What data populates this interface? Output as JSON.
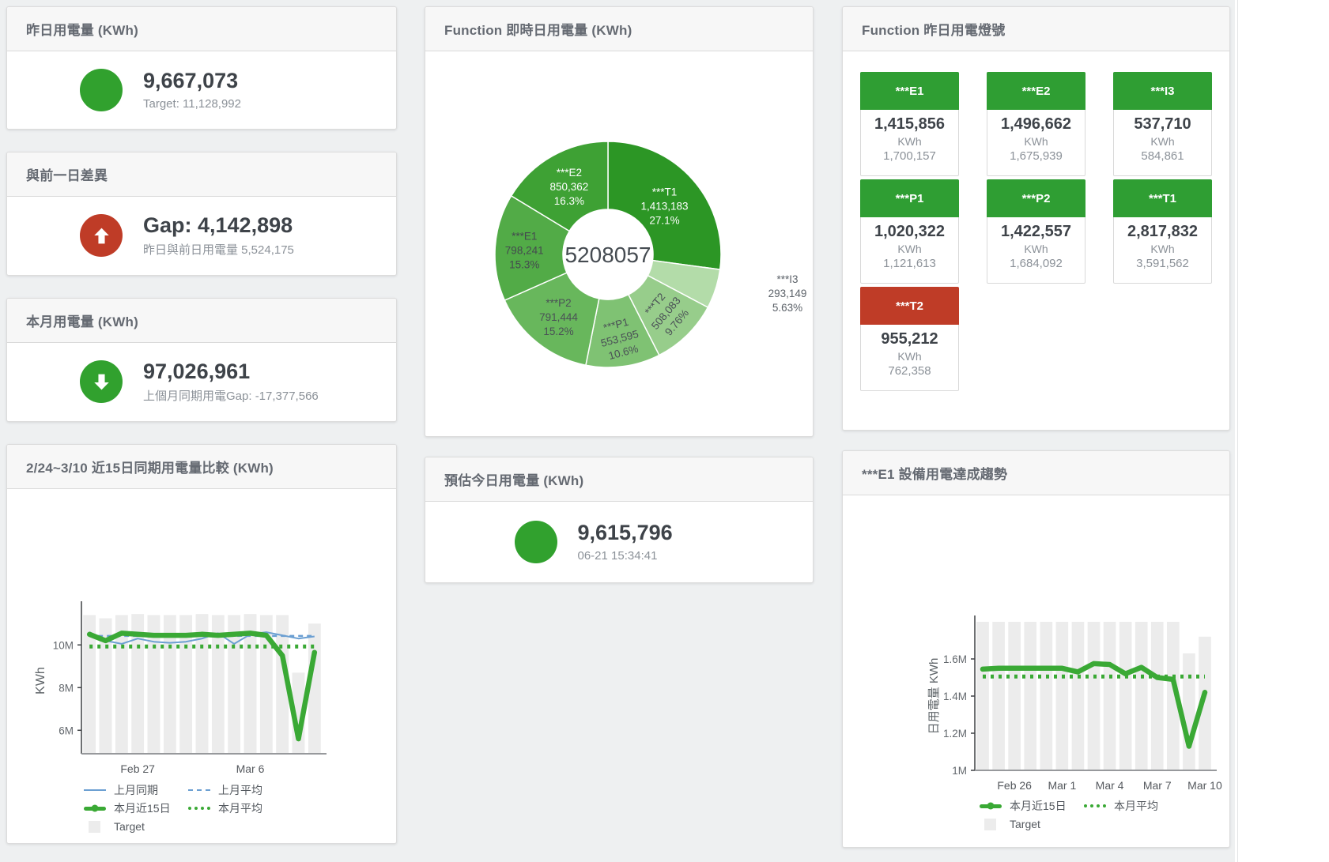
{
  "colors": {
    "status_green": "#31a12e",
    "status_red": "#bf3c27",
    "tile_green": "#2f9e33",
    "tile_red": "#bf3c27",
    "line_blue": "#6b9fd2",
    "line_green": "#3aa935",
    "target_gray": "#ececec"
  },
  "panels": {
    "yesterday": {
      "title": "昨日用電量 (KWh)",
      "value": "9,667,073",
      "subtitle": "Target: 11,128,992"
    },
    "diff": {
      "title": "與前一日差異",
      "value": "Gap: 4,142,898",
      "subtitle": "昨日與前日用電量 5,524,175"
    },
    "month": {
      "title": "本月用電量 (KWh)",
      "value": "97,026,961",
      "subtitle": "上個月同期用電Gap: -17,377,566"
    },
    "realtime": {
      "title": "Function 即時日用電量 (KWh)"
    },
    "lights": {
      "title": "Function 昨日用電燈號",
      "unit_label": "KWh",
      "tiles": [
        {
          "name": "***E1",
          "value": "1,415,856",
          "target": "1,700,157",
          "status": "green"
        },
        {
          "name": "***E2",
          "value": "1,496,662",
          "target": "1,675,939",
          "status": "green"
        },
        {
          "name": "***I3",
          "value": "537,710",
          "target": "584,861",
          "status": "green"
        },
        {
          "name": "***P1",
          "value": "1,020,322",
          "target": "1,121,613",
          "status": "green"
        },
        {
          "name": "***P2",
          "value": "1,422,557",
          "target": "1,684,092",
          "status": "green"
        },
        {
          "name": "***T1",
          "value": "2,817,832",
          "target": "3,591,562",
          "status": "green"
        },
        {
          "name": "***T2",
          "value": "955,212",
          "target": "762,358",
          "status": "red"
        }
      ]
    },
    "compare": {
      "title": "2/24~3/10 近15日同期用電量比較 (KWh)"
    },
    "estimate": {
      "title": "預估今日用電量 (KWh)",
      "value": "9,615,796",
      "subtitle": "06-21 15:34:41"
    },
    "trend": {
      "title": "***E1 設備用電達成趨勢"
    }
  },
  "chart_data": [
    {
      "id": "donut",
      "type": "pie",
      "title": "Function 即時日用電量 (KWh)",
      "center_total": "5208057",
      "slices": [
        {
          "name": "***T1",
          "value": 1413183,
          "value_label": "1,413,183",
          "pct_label": "27.1%",
          "color": "#2c9625",
          "text": "#ffffff",
          "label_r": 95
        },
        {
          "name": "***I3",
          "value": 293149,
          "value_label": "293,149",
          "pct_label": "5.63%",
          "color": "#b3dca9",
          "text": "#5c6269",
          "outside": true
        },
        {
          "name": "***T2",
          "value": 508083,
          "value_label": "508,083",
          "pct_label": "9.76%",
          "color": "#97cd8b",
          "text": "#4a5056",
          "label_r": 103,
          "rotate": -50
        },
        {
          "name": "***P1",
          "value": 553595,
          "value_label": "553,595",
          "pct_label": "10.6%",
          "color": "#7fc273",
          "text": "#4a5056",
          "label_r": 106,
          "rotate": -15
        },
        {
          "name": "***P2",
          "value": 791444,
          "value_label": "791,444",
          "pct_label": "15.2%",
          "color": "#68b75c",
          "text": "#4a5056",
          "label_r": 100
        },
        {
          "name": "***E1",
          "value": 798241,
          "value_label": "798,241",
          "pct_label": "15.3%",
          "color": "#52ab47",
          "text": "#44494f",
          "label_r": 106
        },
        {
          "name": "***E2",
          "value": 850362,
          "value_label": "850,362",
          "pct_label": "16.3%",
          "color": "#3ea134",
          "text": "#ffffff",
          "label_r": 100
        }
      ]
    },
    {
      "id": "compare",
      "type": "line+bar",
      "title": "2/24~3/10 近15日同期用電量比較 (KWh)",
      "ylabel": "KWh",
      "unit": "M KWh",
      "n_points": 15,
      "ylim": [
        4.9,
        11.75
      ],
      "grid": false,
      "yticks": [
        {
          "v": 10,
          "label": "10M"
        },
        {
          "v": 8,
          "label": "8M"
        },
        {
          "v": 6,
          "label": "6M"
        }
      ],
      "x_tick_labels": [
        {
          "index": 3,
          "text": "Feb 27"
        },
        {
          "index": 10,
          "text": "Mar 6"
        }
      ],
      "target_bars": {
        "name": "Target",
        "color": "#ececec",
        "values": [
          11.4,
          11.25,
          11.4,
          11.45,
          11.4,
          11.4,
          11.4,
          11.45,
          11.4,
          11.4,
          11.45,
          11.4,
          11.4,
          8.7,
          11.0
        ]
      },
      "series": [
        {
          "name": "上月同期",
          "style": "thin",
          "color": "#6b9fd2",
          "values": [
            10.6,
            10.2,
            10.05,
            10.3,
            10.15,
            10.1,
            10.15,
            10.3,
            10.55,
            10.05,
            10.5,
            10.6,
            10.45,
            10.3,
            10.4
          ]
        },
        {
          "name": "上月平均",
          "style": "dashed",
          "color": "#6b9fd2",
          "constant": 10.42
        },
        {
          "name": "本月近15日",
          "style": "thick",
          "color": "#3aa935",
          "values": [
            10.5,
            10.2,
            10.55,
            10.5,
            10.45,
            10.45,
            10.45,
            10.5,
            10.45,
            10.5,
            10.55,
            10.45,
            9.5,
            5.6,
            9.65
          ]
        },
        {
          "name": "本月平均",
          "style": "dotted",
          "color": "#3aa935",
          "constant": 9.93
        }
      ],
      "legend": [
        {
          "label": "上月同期",
          "type": "thin",
          "color": "#6b9fd2"
        },
        {
          "label": "上月平均",
          "type": "dashed",
          "color": "#6b9fd2"
        },
        {
          "label": "本月近15日",
          "type": "thick",
          "color": "#3aa935"
        },
        {
          "label": "本月平均",
          "type": "dotted",
          "color": "#3aa935"
        },
        {
          "label": "Target",
          "type": "bar",
          "color": "#ececec"
        }
      ],
      "legend_position": "bottom",
      "legend_indent": 97
    },
    {
      "id": "trend",
      "type": "line+bar",
      "title": "***E1 設備用電達成趨勢",
      "ylabel": "日用電量 KWh",
      "unit": "M KWh",
      "n_points": 15,
      "ylim": [
        1.0,
        1.8
      ],
      "grid": false,
      "yticks": [
        {
          "v": 1.6,
          "label": "1.6M"
        },
        {
          "v": 1.4,
          "label": "1.4M"
        },
        {
          "v": 1.2,
          "label": "1.2M"
        },
        {
          "v": 1.0,
          "label": "1M"
        }
      ],
      "x_tick_labels": [
        {
          "index": 2,
          "text": "Feb 26"
        },
        {
          "index": 5,
          "text": "Mar 1"
        },
        {
          "index": 8,
          "text": "Mar 4"
        },
        {
          "index": 11,
          "text": "Mar 7"
        },
        {
          "index": 14,
          "text": "Mar 10"
        }
      ],
      "target_bars": {
        "name": "Target",
        "color": "#ececec",
        "values": [
          1.8,
          1.8,
          1.8,
          1.8,
          1.8,
          1.8,
          1.8,
          1.8,
          1.8,
          1.8,
          1.8,
          1.8,
          1.8,
          1.63,
          1.72
        ]
      },
      "series": [
        {
          "name": "本月近15日",
          "style": "thick",
          "color": "#3aa935",
          "values": [
            1.545,
            1.55,
            1.55,
            1.55,
            1.55,
            1.55,
            1.53,
            1.575,
            1.57,
            1.52,
            1.555,
            1.5,
            1.49,
            1.13,
            1.42
          ]
        },
        {
          "name": "本月平均",
          "style": "dotted",
          "color": "#3aa935",
          "constant": 1.505
        }
      ],
      "legend": [
        {
          "label": "本月近15日",
          "type": "thick",
          "color": "#3aa935"
        },
        {
          "label": "本月平均",
          "type": "dotted",
          "color": "#3aa935"
        },
        {
          "label": "Target",
          "type": "bar",
          "color": "#ececec"
        }
      ],
      "legend_position": "bottom",
      "legend_indent": 173
    }
  ]
}
